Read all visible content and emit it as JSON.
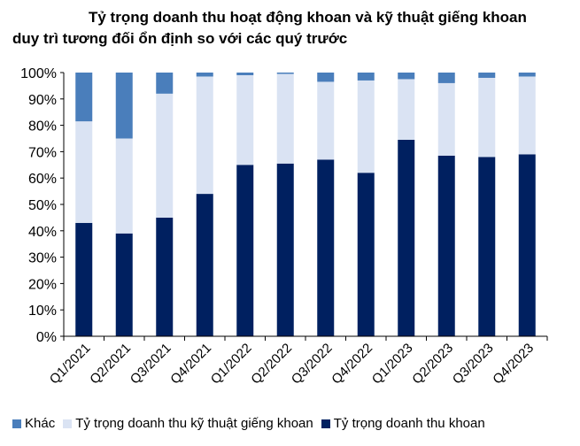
{
  "chart_data": {
    "type": "bar",
    "stacked": true,
    "title_line1": "Tỷ trọng doanh thu hoạt động khoan và kỹ thuật giếng khoan",
    "title_line2": "duy trì tương đối ổn định so với các quý trước",
    "categories": [
      "Q1/2021",
      "Q2/2021",
      "Q3/2021",
      "Q4/2021",
      "Q1/2022",
      "Q2/2022",
      "Q3/2022",
      "Q4/2022",
      "Q1/2023",
      "Q2/2023",
      "Q3/2023",
      "Q4/2023"
    ],
    "y_ticks": [
      "0%",
      "10%",
      "20%",
      "30%",
      "40%",
      "50%",
      "60%",
      "70%",
      "80%",
      "90%",
      "100%"
    ],
    "ylim": [
      0,
      100
    ],
    "legend_position": "bottom",
    "series": [
      {
        "name": "Tỷ trọng doanh thu khoan",
        "color": "#002060",
        "values": [
          43,
          39,
          45,
          54,
          65,
          65.5,
          67,
          62,
          74.5,
          68.5,
          68,
          69
        ]
      },
      {
        "name": "Tỷ trọng doanh thu kỹ thuật giếng khoan",
        "color": "#DAE3F3",
        "values": [
          38.5,
          36,
          47,
          44.5,
          34,
          34,
          29.5,
          35,
          23,
          27.5,
          30,
          29.5
        ]
      },
      {
        "name": "Khác",
        "color": "#4A7EBB",
        "values": [
          18.5,
          25,
          8,
          1.5,
          1,
          0.5,
          3.5,
          3,
          2.5,
          4,
          2,
          1.5
        ]
      }
    ],
    "legend_order": [
      2,
      1,
      0
    ]
  }
}
